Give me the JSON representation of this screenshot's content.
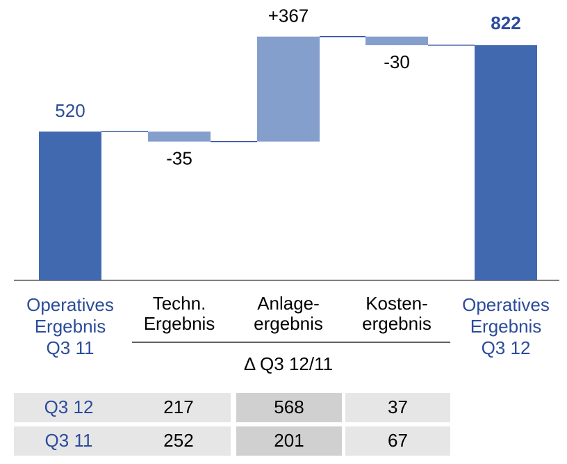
{
  "chart_data": {
    "type": "waterfall",
    "categories": [
      [
        "Operatives",
        "Ergebnis",
        "Q3 11"
      ],
      [
        "Techn.",
        "Ergebnis"
      ],
      [
        "Anlage-",
        "ergebnis"
      ],
      [
        "Kosten-",
        "ergebnis"
      ],
      [
        "Operatives",
        "Ergebnis",
        "Q3 12"
      ]
    ],
    "values": [
      520,
      -35,
      367,
      -30,
      822
    ],
    "value_labels": [
      "520",
      "-35",
      "+367",
      "-30",
      "822"
    ],
    "measure": [
      "total",
      "relative",
      "relative",
      "relative",
      "total"
    ],
    "colors": [
      "#4169b0",
      "#859fcd",
      "#859fcd",
      "#859fcd",
      "#4169b0"
    ],
    "subtitle": "Δ Q3 12/11",
    "table": {
      "rows": [
        [
          "Q3 12",
          217,
          568,
          37
        ],
        [
          "Q3 11",
          252,
          201,
          67
        ]
      ]
    }
  }
}
